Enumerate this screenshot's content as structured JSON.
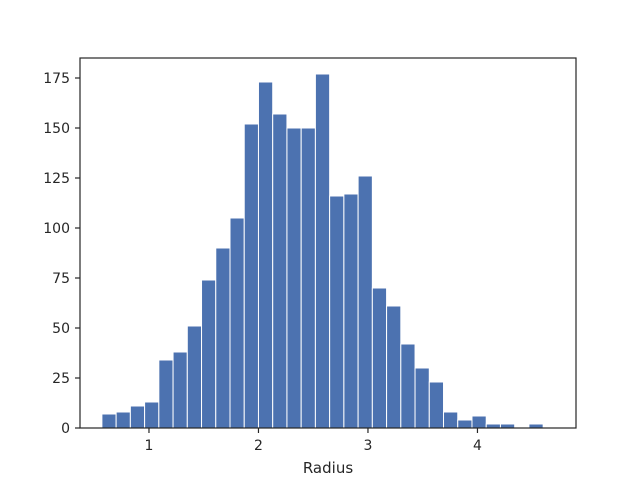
{
  "chart_data": {
    "type": "bar",
    "title": "",
    "xlabel": "Radius",
    "ylabel": "",
    "xlim": [
      0.37,
      4.9
    ],
    "ylim": [
      0,
      185
    ],
    "grid": false,
    "legend": "none",
    "bar_color": "#4C72B0",
    "edge_color": "#ffffff",
    "x_ticks": [
      1,
      2,
      3,
      4
    ],
    "x_tick_labels": [
      "1",
      "2",
      "3",
      "4"
    ],
    "y_ticks": [
      0,
      25,
      50,
      75,
      100,
      125,
      150,
      175
    ],
    "y_tick_labels": [
      "0",
      "25",
      "50",
      "75",
      "100",
      "125",
      "150",
      "175"
    ],
    "bin_edges": [
      0.57,
      0.7,
      0.83,
      0.96,
      1.09,
      1.22,
      1.35,
      1.48,
      1.61,
      1.74,
      1.87,
      2.0,
      2.13,
      2.26,
      2.39,
      2.52,
      2.65,
      2.78,
      2.91,
      3.04,
      3.17,
      3.3,
      3.43,
      3.56,
      3.69,
      3.82,
      3.95,
      4.08,
      4.21,
      4.34,
      4.47,
      4.6,
      4.73
    ],
    "values": [
      7,
      8,
      11,
      13,
      34,
      38,
      51,
      74,
      90,
      105,
      152,
      173,
      157,
      150,
      150,
      177,
      116,
      117,
      126,
      70,
      61,
      42,
      30,
      23,
      8,
      4,
      6,
      2,
      2,
      0,
      2,
      0
    ]
  }
}
